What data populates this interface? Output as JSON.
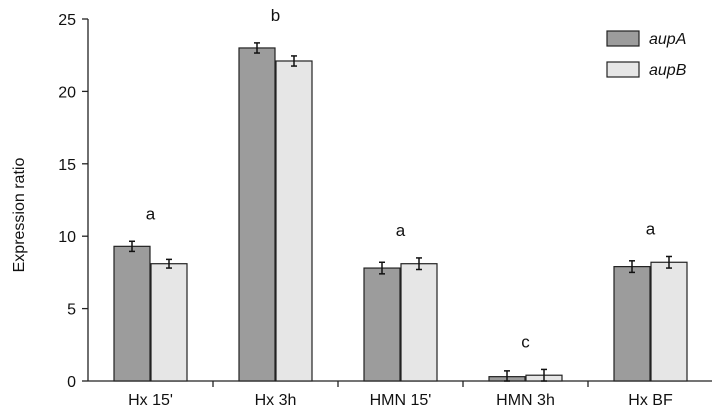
{
  "chart_data": {
    "type": "bar",
    "categories": [
      "Hx 15'",
      "Hx 3h",
      "HMN 15'",
      "HMN 3h",
      "Hx BF"
    ],
    "series": [
      {
        "name": "aupA",
        "color": "#9c9c9c",
        "values": [
          9.3,
          23.0,
          7.8,
          0.3,
          7.9
        ],
        "errors": [
          0.35,
          0.35,
          0.4,
          0.4,
          0.4
        ]
      },
      {
        "name": "aupB",
        "color": "#e6e6e6",
        "values": [
          8.1,
          22.1,
          8.1,
          0.4,
          8.2
        ],
        "errors": [
          0.3,
          0.35,
          0.4,
          0.4,
          0.4
        ]
      }
    ],
    "group_labels": [
      "a",
      "b",
      "a",
      "c",
      "a"
    ],
    "ylabel": "Expression ratio",
    "xlabel": "",
    "ylim": [
      0,
      25
    ],
    "yticks": [
      "0",
      "5",
      "10",
      "15",
      "20",
      "25"
    ],
    "grid": false,
    "legend": "top-right"
  }
}
